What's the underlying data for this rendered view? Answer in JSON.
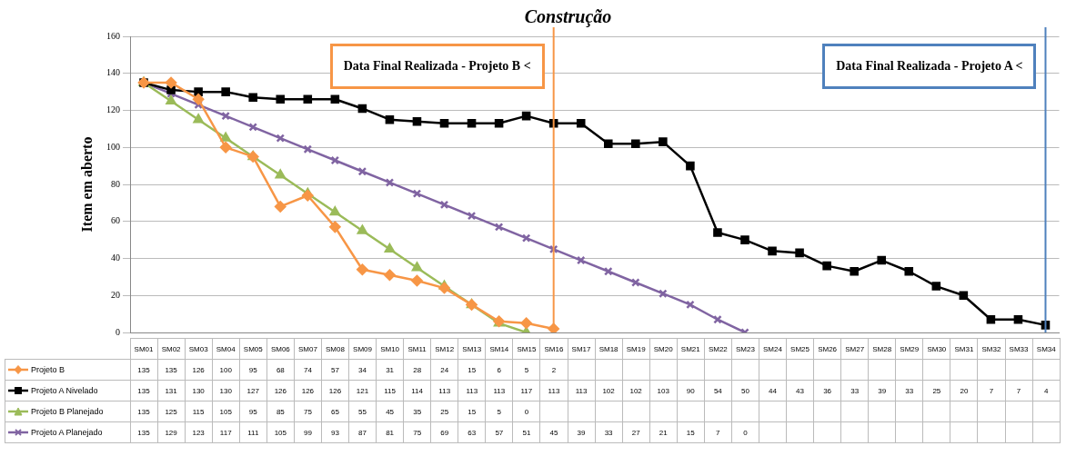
{
  "chart_data": {
    "type": "line",
    "title": "Construção",
    "ylabel": "Item em aberto",
    "categories": [
      "SM01",
      "SM02",
      "SM03",
      "SM04",
      "SM05",
      "SM06",
      "SM07",
      "SM08",
      "SM09",
      "SM10",
      "SM11",
      "SM12",
      "SM13",
      "SM14",
      "SM15",
      "SM16",
      "SM17",
      "SM18",
      "SM19",
      "SM20",
      "SM21",
      "SM22",
      "SM23",
      "SM24",
      "SM25",
      "SM26",
      "SM27",
      "SM28",
      "SM29",
      "SM30",
      "SM31",
      "SM32",
      "SM33",
      "SM34"
    ],
    "series": [
      {
        "name": "Projeto B",
        "color": "#f79646",
        "marker": "diamond",
        "values": [
          135,
          135,
          126,
          100,
          95,
          68,
          74,
          57,
          34,
          31,
          28,
          24,
          15,
          6,
          5,
          2,
          null,
          null,
          null,
          null,
          null,
          null,
          null,
          null,
          null,
          null,
          null,
          null,
          null,
          null,
          null,
          null,
          null,
          null
        ]
      },
      {
        "name": "Projeto A Nivelado",
        "color": "#000000",
        "marker": "square",
        "values": [
          135,
          131,
          130,
          130,
          127,
          126,
          126,
          126,
          121,
          115,
          114,
          113,
          113,
          113,
          117,
          113,
          113,
          102,
          102,
          103,
          90,
          54,
          50,
          44,
          43,
          36,
          33,
          39,
          33,
          25,
          20,
          7,
          7,
          4
        ]
      },
      {
        "name": "Projeto B Planejado",
        "color": "#9bbb59",
        "marker": "triangle",
        "values": [
          135,
          125,
          115,
          105,
          95,
          85,
          75,
          65,
          55,
          45,
          35,
          25,
          15,
          5,
          0,
          null,
          null,
          null,
          null,
          null,
          null,
          null,
          null,
          null,
          null,
          null,
          null,
          null,
          null,
          null,
          null,
          null,
          null,
          null
        ]
      },
      {
        "name": "Projeto A Planejado",
        "color": "#8064a2",
        "marker": "cross",
        "values": [
          135,
          129,
          123,
          117,
          111,
          105,
          99,
          93,
          87,
          81,
          75,
          69,
          63,
          57,
          51,
          45,
          39,
          33,
          27,
          21,
          15,
          7,
          0,
          null,
          null,
          null,
          null,
          null,
          null,
          null,
          null,
          null,
          null,
          null
        ]
      }
    ],
    "ylim": [
      0,
      160
    ],
    "yticks": [
      0,
      20,
      40,
      60,
      80,
      100,
      120,
      140,
      160
    ],
    "grid": "y",
    "legend": "bottom",
    "data_labels": true,
    "ref_lines": [
      {
        "axis": "x",
        "value": "SM16",
        "label": "Data Final Realizada - Projeto B <",
        "color": "#f79646"
      },
      {
        "axis": "x",
        "value": "SM34",
        "label": "Data Final Realizada - Projeto A <",
        "color": "#4f81bd"
      }
    ]
  }
}
